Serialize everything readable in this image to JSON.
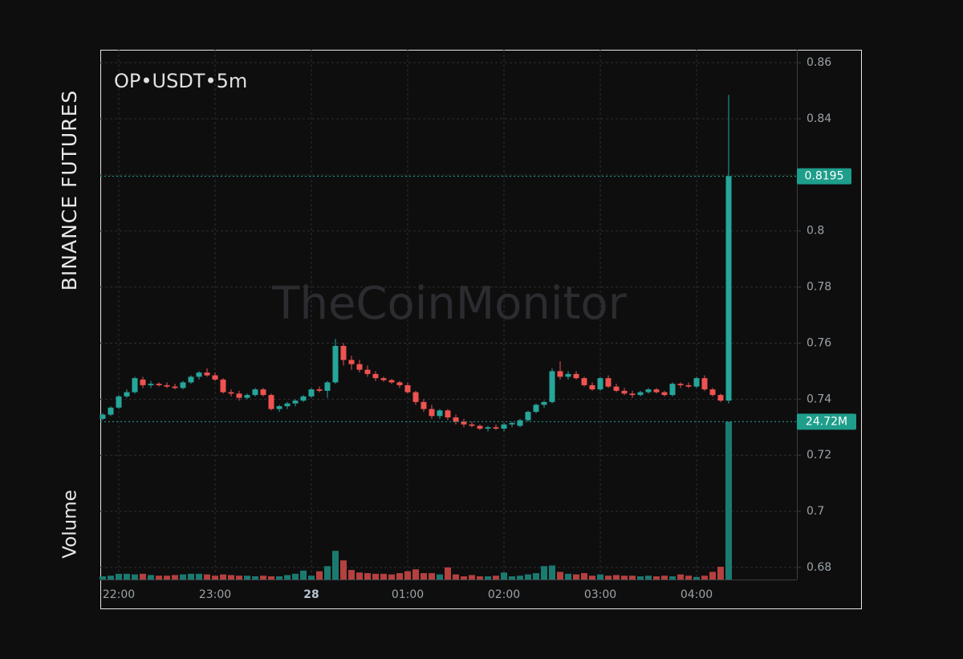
{
  "chart_data": {
    "type": "candlestick",
    "title": "OP•USDT•5m",
    "exchange": "BINANCE FUTURES",
    "volume_title": "Volume",
    "watermark": "TheCoinMonitor",
    "categories": [
      null,
      null,
      "22:00",
      null,
      null,
      null,
      null,
      null,
      null,
      null,
      null,
      null,
      null,
      null,
      "23:00",
      null,
      null,
      null,
      null,
      null,
      null,
      null,
      null,
      null,
      null,
      null,
      "28",
      null,
      null,
      null,
      null,
      null,
      null,
      null,
      null,
      null,
      null,
      null,
      "01:00",
      null,
      null,
      null,
      null,
      null,
      null,
      null,
      null,
      null,
      null,
      null,
      "02:00",
      null,
      null,
      null,
      null,
      null,
      null,
      null,
      null,
      null,
      null,
      null,
      "03:00",
      null,
      null,
      null,
      null,
      null,
      null,
      null,
      null,
      null,
      null,
      null,
      "04:00",
      null,
      null,
      null,
      null
    ],
    "open": [
      0.733,
      0.7345,
      0.737,
      0.741,
      0.7425,
      0.747,
      0.745,
      0.7455,
      0.745,
      0.7445,
      0.744,
      0.746,
      0.748,
      0.7495,
      0.7485,
      0.747,
      0.7425,
      0.742,
      0.7405,
      0.7415,
      0.7435,
      0.7415,
      0.7365,
      0.7375,
      0.7385,
      0.7395,
      0.741,
      0.7435,
      0.743,
      0.746,
      0.759,
      0.754,
      0.7525,
      0.7505,
      0.749,
      0.7475,
      0.7468,
      0.746,
      0.745,
      0.7425,
      0.739,
      0.7365,
      0.734,
      0.736,
      0.7335,
      0.732,
      0.731,
      0.7305,
      0.7295,
      0.73,
      0.7295,
      0.731,
      0.7305,
      0.7325,
      0.7355,
      0.738,
      0.739,
      0.75,
      0.748,
      0.749,
      0.7475,
      0.745,
      0.7435,
      0.7475,
      0.7445,
      0.743,
      0.742,
      0.7415,
      0.7425,
      0.7435,
      0.7425,
      0.7415,
      0.7455,
      0.745,
      0.7445,
      0.7475,
      0.7435,
      0.7415,
      0.7395
    ],
    "high": [
      0.735,
      0.7375,
      0.7415,
      0.7435,
      0.748,
      0.748,
      0.7465,
      0.746,
      0.746,
      0.7455,
      0.7465,
      0.7485,
      0.75,
      0.751,
      0.7495,
      0.7475,
      0.7435,
      0.743,
      0.742,
      0.744,
      0.744,
      0.742,
      0.738,
      0.739,
      0.74,
      0.7415,
      0.744,
      0.7445,
      0.7465,
      0.7615,
      0.76,
      0.7555,
      0.754,
      0.752,
      0.75,
      0.748,
      0.7472,
      0.7465,
      0.746,
      0.743,
      0.74,
      0.738,
      0.7365,
      0.7365,
      0.7345,
      0.733,
      0.732,
      0.731,
      0.7305,
      0.731,
      0.7315,
      0.732,
      0.733,
      0.736,
      0.7385,
      0.7395,
      0.751,
      0.7535,
      0.75,
      0.75,
      0.748,
      0.746,
      0.748,
      0.7485,
      0.7455,
      0.744,
      0.743,
      0.743,
      0.744,
      0.744,
      0.743,
      0.746,
      0.746,
      0.746,
      0.748,
      0.7485,
      0.744,
      0.742,
      0.8485
    ],
    "low": [
      0.7325,
      0.734,
      0.7365,
      0.7405,
      0.742,
      0.744,
      0.744,
      0.7445,
      0.744,
      0.7435,
      0.7435,
      0.7455,
      0.747,
      0.748,
      0.7465,
      0.742,
      0.741,
      0.7395,
      0.74,
      0.741,
      0.741,
      0.736,
      0.7355,
      0.7365,
      0.7375,
      0.739,
      0.7405,
      0.7425,
      0.7405,
      0.7455,
      0.752,
      0.7505,
      0.7495,
      0.748,
      0.7465,
      0.7462,
      0.7455,
      0.744,
      0.742,
      0.738,
      0.7355,
      0.733,
      0.733,
      0.7325,
      0.731,
      0.73,
      0.73,
      0.729,
      0.7285,
      0.729,
      0.7285,
      0.73,
      0.73,
      0.732,
      0.735,
      0.737,
      0.7385,
      0.747,
      0.747,
      0.747,
      0.7445,
      0.743,
      0.743,
      0.744,
      0.7425,
      0.7415,
      0.7405,
      0.741,
      0.742,
      0.742,
      0.741,
      0.741,
      0.744,
      0.744,
      0.744,
      0.743,
      0.741,
      0.739,
      0.7385
    ],
    "close": [
      0.7345,
      0.737,
      0.741,
      0.7425,
      0.7475,
      0.745,
      0.7455,
      0.745,
      0.7445,
      0.744,
      0.746,
      0.748,
      0.7495,
      0.7485,
      0.747,
      0.7425,
      0.742,
      0.7405,
      0.7415,
      0.7435,
      0.7415,
      0.7365,
      0.7375,
      0.7385,
      0.7395,
      0.741,
      0.7435,
      0.743,
      0.746,
      0.759,
      0.754,
      0.7525,
      0.7505,
      0.749,
      0.7475,
      0.7468,
      0.746,
      0.745,
      0.7425,
      0.739,
      0.7365,
      0.734,
      0.736,
      0.7335,
      0.732,
      0.731,
      0.7305,
      0.7295,
      0.73,
      0.7295,
      0.731,
      0.7315,
      0.7325,
      0.7355,
      0.738,
      0.739,
      0.75,
      0.748,
      0.749,
      0.7475,
      0.745,
      0.7435,
      0.7475,
      0.7445,
      0.743,
      0.742,
      0.7415,
      0.7425,
      0.7435,
      0.7425,
      0.7415,
      0.7455,
      0.745,
      0.7445,
      0.7475,
      0.7435,
      0.7415,
      0.7395,
      0.8195
    ],
    "volume": [
      0.5,
      0.6,
      0.9,
      0.9,
      0.8,
      0.9,
      0.7,
      0.6,
      0.6,
      0.7,
      0.8,
      0.9,
      0.9,
      0.8,
      0.6,
      0.8,
      0.7,
      0.6,
      0.6,
      0.5,
      0.6,
      0.5,
      0.5,
      0.7,
      0.9,
      1.4,
      0.6,
      1.3,
      2.1,
      4.5,
      3.0,
      1.5,
      1.1,
      1.0,
      0.9,
      0.9,
      0.8,
      1.0,
      1.3,
      1.6,
      1.0,
      1.0,
      0.8,
      1.9,
      0.8,
      0.5,
      0.7,
      0.5,
      0.5,
      0.6,
      1.1,
      0.5,
      0.6,
      0.8,
      1.0,
      2.1,
      2.2,
      1.2,
      0.9,
      0.8,
      1.0,
      0.6,
      0.8,
      0.6,
      0.7,
      0.6,
      0.6,
      0.5,
      0.6,
      0.5,
      0.6,
      0.5,
      0.8,
      0.6,
      0.4,
      0.6,
      1.2,
      2.0,
      24.72
    ],
    "up_color": "#26a69a",
    "down_color": "#ef5350",
    "volume_up_color": "#1b7a70",
    "volume_down_color": "#b5403e",
    "ylim": [
      0.6757,
      0.8646
    ],
    "yticks": [
      0.68,
      0.7,
      0.72,
      0.74,
      0.76,
      0.78,
      0.8,
      0.82,
      0.84,
      0.86
    ],
    "y2lim": [
      0,
      83
    ],
    "last_price": 0.8195,
    "last_volume": {
      "value": 24.72,
      "label": "24.72M"
    },
    "grid": true
  }
}
